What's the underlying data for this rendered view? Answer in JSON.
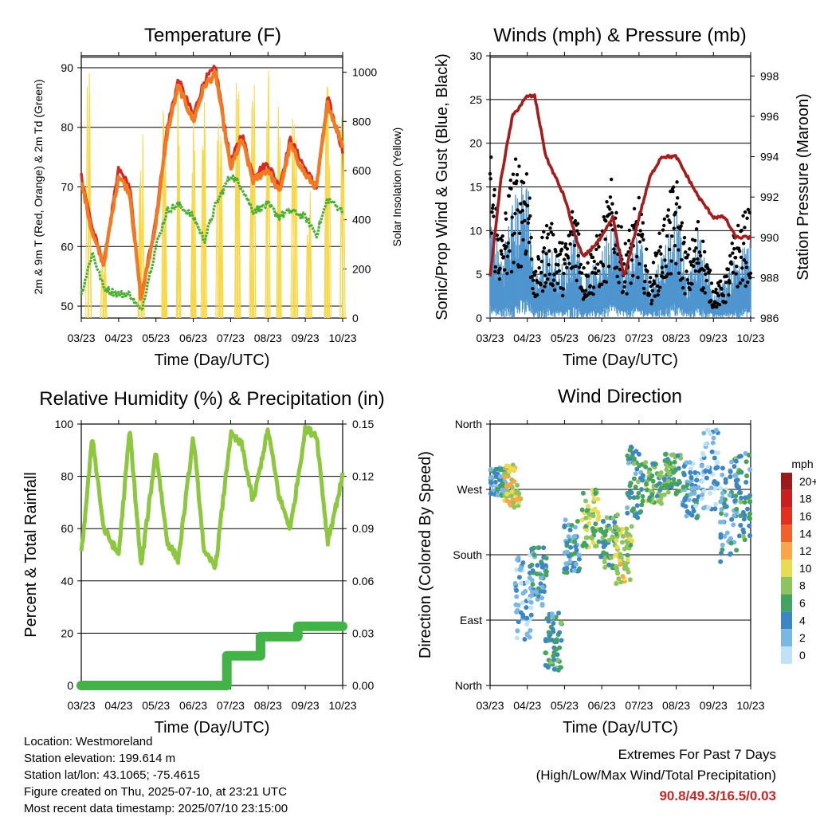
{
  "colors": {
    "t2m": "#d62a20",
    "t9m": "#f47a22",
    "td": "#4caf33",
    "solar": "#f8d848",
    "wind": "#4f95cf",
    "gust": "#000000",
    "pressure": "#a51c1c",
    "rh": "#8dc63f",
    "precip": "#43b347"
  },
  "x_ticks": [
    "03/23",
    "04/23",
    "05/23",
    "06/23",
    "07/23",
    "08/23",
    "09/23",
    "10/23"
  ],
  "chart_data": [
    {
      "id": "temperature",
      "type": "line",
      "title": "Temperature (F)",
      "xlabel": "Time (Day/UTC)",
      "ylabel": "2m & 9m T (Red, Orange) & 2m Td (Green)",
      "ylabel_right": "Solar Insolation (Yellow)",
      "ylim": [
        48,
        92
      ],
      "yticks": [
        50,
        60,
        70,
        80,
        90
      ],
      "ylim_right": [
        0,
        1067
      ],
      "yticks_right": [
        0,
        200,
        400,
        600,
        800,
        1000
      ],
      "x": [
        0,
        0.3,
        0.6,
        1,
        1.3,
        1.6,
        2,
        2.3,
        2.6,
        3,
        3.3,
        3.6,
        4,
        4.3,
        4.6,
        5,
        5.3,
        5.6,
        6,
        6.3,
        6.6,
        7
      ],
      "series": [
        {
          "key": "t2m",
          "values": [
            72,
            63,
            57,
            73,
            70,
            51,
            65,
            80,
            88,
            82,
            88,
            90,
            74,
            79,
            72,
            74,
            70,
            78,
            73,
            70,
            85,
            76
          ]
        },
        {
          "key": "t9m",
          "values": [
            71,
            62,
            57,
            72,
            69,
            51,
            64,
            79,
            87,
            81,
            87,
            89,
            73,
            78,
            71,
            73,
            69,
            77,
            72,
            70,
            84,
            77
          ]
        },
        {
          "key": "td",
          "values": [
            52,
            59,
            53,
            52,
            52,
            49,
            60,
            66,
            67,
            65,
            61,
            67,
            72,
            70,
            66,
            67,
            65,
            66,
            65,
            62,
            68,
            66
          ]
        }
      ],
      "solar_peaks": [
        0.2,
        0.6,
        1.6,
        2.2,
        2.6,
        3.0,
        3.3,
        3.7,
        4.2,
        4.6,
        5.0,
        5.3,
        5.7,
        6.1,
        6.6,
        7.0
      ],
      "solar_values": [
        1000,
        300,
        800,
        900,
        1000,
        920,
        900,
        880,
        990,
        950,
        1050,
        1020,
        860,
        600,
        950,
        900
      ]
    },
    {
      "id": "winds",
      "type": "line",
      "title": "Winds (mph) & Pressure (mb)",
      "xlabel": "Time (Day/UTC)",
      "ylabel": "Sonic/Prop Wind & Gust (Blue, Black)",
      "ylabel_right": "Station Pressure (Maroon)",
      "ylim": [
        0,
        30
      ],
      "yticks": [
        0,
        5,
        10,
        15,
        20,
        25,
        30
      ],
      "ylim_right": [
        986,
        999
      ],
      "yticks_right": [
        986,
        988,
        990,
        992,
        994,
        996,
        998
      ],
      "x": [
        0,
        0.3,
        0.6,
        1,
        1.2,
        1.5,
        2,
        2.3,
        2.5,
        3,
        3.3,
        3.6,
        4,
        4.3,
        4.6,
        5,
        5.3,
        5.6,
        6,
        6.3,
        6.6,
        7
      ],
      "series": [
        {
          "key": "wind",
          "values": [
            8,
            5,
            9,
            12,
            3,
            6,
            4,
            8,
            3,
            5,
            9,
            4,
            7,
            3,
            5,
            9,
            3,
            7,
            2,
            3,
            5,
            6
          ]
        },
        {
          "key": "gust",
          "values": [
            18,
            8,
            15,
            17,
            4,
            10,
            7,
            13,
            5,
            9,
            14,
            7,
            12,
            4,
            9,
            14,
            6,
            10,
            3,
            4,
            9,
            11
          ]
        },
        {
          "key": "pressure",
          "values": [
            988,
            993,
            996,
            997,
            997,
            994,
            992,
            990,
            989,
            990,
            991,
            988,
            991,
            993,
            994,
            994,
            993,
            992,
            991,
            991,
            990,
            990
          ]
        }
      ]
    },
    {
      "id": "humidity",
      "type": "line",
      "title": "Relative Humidity (%) & Precipitation (in)",
      "xlabel": "Time (Day/UTC)",
      "ylabel": "Percent & Total Rainfall",
      "ylim": [
        0,
        100
      ],
      "yticks": [
        0,
        20,
        40,
        60,
        80,
        100
      ],
      "ylim_right": [
        0,
        0.15
      ],
      "yticks_right": [
        "0.00",
        "0.03",
        "0.06",
        "0.09",
        "0.12",
        "0.15"
      ],
      "x": [
        0,
        0.3,
        0.6,
        1,
        1.3,
        1.6,
        2,
        2.3,
        2.6,
        3,
        3.3,
        3.6,
        4,
        4.3,
        4.6,
        5,
        5.3,
        5.6,
        6,
        6.3,
        6.6,
        7
      ],
      "series": [
        {
          "key": "rh",
          "values": [
            50,
            95,
            60,
            50,
            98,
            45,
            90,
            55,
            48,
            95,
            50,
            46,
            96,
            92,
            70,
            98,
            72,
            60,
            98,
            96,
            55,
            80
          ]
        },
        {
          "key": "precip",
          "steps": [
            [
              0,
              0
            ],
            [
              3.9,
              0
            ],
            [
              3.9,
              0.017
            ],
            [
              4.8,
              0.017
            ],
            [
              4.8,
              0.028
            ],
            [
              5.8,
              0.028
            ],
            [
              5.8,
              0.034
            ],
            [
              7,
              0.034
            ]
          ]
        }
      ]
    },
    {
      "id": "wind_direction",
      "type": "scatter",
      "title": "Wind Direction",
      "xlabel": "Time (Day/UTC)",
      "ylabel": "Direction (Colored By Speed)",
      "ylim": [
        0,
        360
      ],
      "yticks": [
        "North",
        "East",
        "South",
        "West",
        "North"
      ],
      "legend_title": "mph",
      "legend_labels": [
        "20+",
        "18",
        "16",
        "14",
        "12",
        "10",
        "8",
        "6",
        "4",
        "2",
        "0"
      ],
      "legend_colors": [
        "#9b1b1b",
        "#c8201f",
        "#e0301f",
        "#f1612c",
        "#f9a64a",
        "#e8dc55",
        "#8dc460",
        "#44a35e",
        "#3e86c3",
        "#7ab7e3",
        "#bfe2f7"
      ],
      "clusters": [
        {
          "x": 0.2,
          "dir": 280,
          "spread": 20,
          "speed": 4
        },
        {
          "x": 0.6,
          "dir": 275,
          "spread": 30,
          "speed": 10
        },
        {
          "x": 0.9,
          "dir": 120,
          "spread": 60,
          "speed": 2
        },
        {
          "x": 1.3,
          "dir": 150,
          "spread": 40,
          "speed": 4
        },
        {
          "x": 1.7,
          "dir": 60,
          "spread": 40,
          "speed": 5
        },
        {
          "x": 2.2,
          "dir": 190,
          "spread": 40,
          "speed": 4
        },
        {
          "x": 2.7,
          "dir": 230,
          "spread": 40,
          "speed": 8
        },
        {
          "x": 3.2,
          "dir": 200,
          "spread": 40,
          "speed": 6
        },
        {
          "x": 3.6,
          "dir": 180,
          "spread": 40,
          "speed": 9
        },
        {
          "x": 3.9,
          "dir": 280,
          "spread": 50,
          "speed": 5
        },
        {
          "x": 4.4,
          "dir": 280,
          "spread": 30,
          "speed": 7
        },
        {
          "x": 4.9,
          "dir": 290,
          "spread": 30,
          "speed": 6
        },
        {
          "x": 5.4,
          "dir": 270,
          "spread": 40,
          "speed": 3
        },
        {
          "x": 5.9,
          "dir": 300,
          "spread": 60,
          "speed": 2
        },
        {
          "x": 6.4,
          "dir": 240,
          "spread": 70,
          "speed": 3
        },
        {
          "x": 6.8,
          "dir": 260,
          "spread": 60,
          "speed": 5
        }
      ]
    }
  ],
  "info": {
    "location": "Location: Westmoreland",
    "elevation": "Station elevation: 199.614 m",
    "latlon": "Station lat/lon: 43.1065; -75.4615",
    "created": "Figure created on Thu, 2025-07-10, at 23:21 UTC",
    "timestamp": "Most recent data timestamp: 2025/07/10 23:15:00"
  },
  "extremes": {
    "title": "Extremes For Past 7 Days",
    "subtitle": "(High/Low/Max Wind/Total Precipitation)",
    "values": "90.8/49.3/16.5/0.03"
  }
}
